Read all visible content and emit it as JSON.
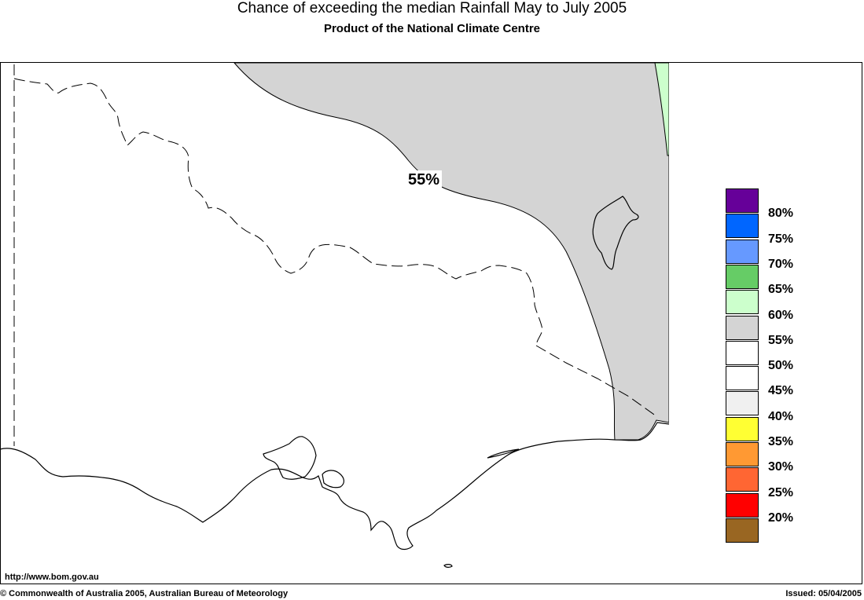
{
  "header": {
    "title": "Chance of exceeding the median Rainfall May to July 2005",
    "subtitle": "Product of the National Climate Centre"
  },
  "map": {
    "contour_label": "55%",
    "regions": [
      {
        "name": "above-55",
        "color": "#d4d4d4"
      },
      {
        "name": "above-60",
        "color": "#ccffcc"
      }
    ]
  },
  "legend": {
    "items": [
      {
        "label": "80%",
        "color": "#660099"
      },
      {
        "label": "75%",
        "color": "#0066ff"
      },
      {
        "label": "70%",
        "color": "#6699ff"
      },
      {
        "label": "65%",
        "color": "#66cc66"
      },
      {
        "label": "60%",
        "color": "#ccffcc"
      },
      {
        "label": "55%",
        "color": "#d4d4d4"
      },
      {
        "label": "50%",
        "color": "#ffffff"
      },
      {
        "label": "45%",
        "color": "#ffffff"
      },
      {
        "label": "40%",
        "color": "#f0f0f0"
      },
      {
        "label": "35%",
        "color": "#ffff33"
      },
      {
        "label": "30%",
        "color": "#ff9933"
      },
      {
        "label": "25%",
        "color": "#ff6633"
      },
      {
        "label": "20%",
        "color": "#ff0000"
      },
      {
        "label": "",
        "color": "#996622"
      }
    ]
  },
  "footer": {
    "url": "http://www.bom.gov.au",
    "copyright": "© Commonwealth of Australia 2005, Australian Bureau of Meteorology",
    "issued": "Issued: 05/04/2005"
  }
}
